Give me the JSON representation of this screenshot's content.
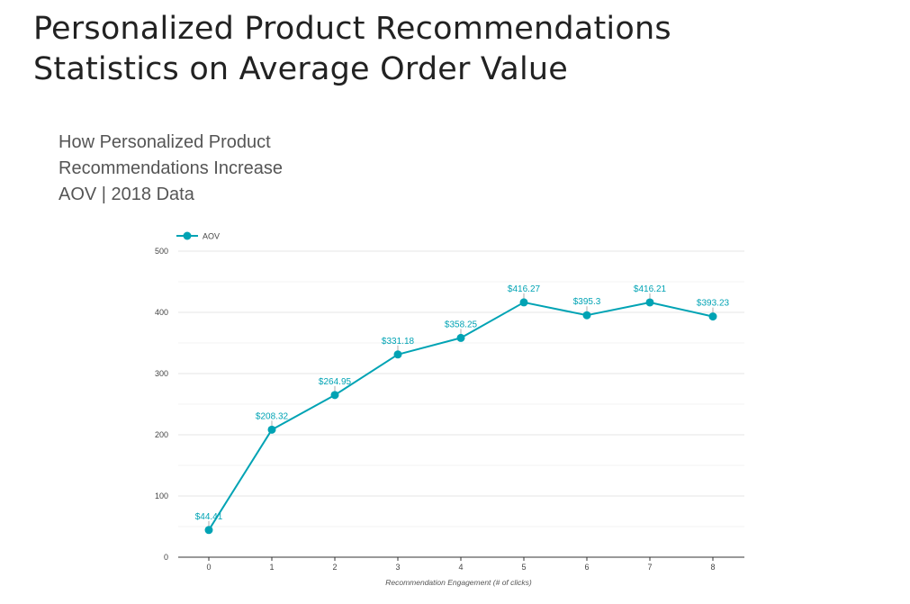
{
  "heading": {
    "line1": "Personalized Product Recommendations",
    "line2": "Statistics on Average Order Value"
  },
  "chart_data": {
    "type": "line",
    "title": "How Personalized Product Recommendations Increase AOV | 2018 Data",
    "title_lines": [
      "How Personalized Product",
      "Recommendations Increase",
      "AOV | 2018 Data"
    ],
    "xlabel": "Recommendation Engagement (# of clicks)",
    "ylabel": "",
    "categories": [
      "0",
      "1",
      "2",
      "3",
      "4",
      "5",
      "6",
      "7",
      "8"
    ],
    "ylim": [
      0,
      500
    ],
    "yticks": [
      0,
      100,
      200,
      300,
      400,
      500
    ],
    "grid": true,
    "legend_position": "top-left",
    "series": [
      {
        "name": "AOV",
        "color": "#00a3b4",
        "values": [
          44.41,
          208.32,
          264.95,
          331.18,
          358.25,
          416.27,
          395.3,
          416.21,
          393.23
        ],
        "labels": [
          "$44.41",
          "$208.32",
          "$264.95",
          "$331.18",
          "$358.25",
          "$416.27",
          "$395.3",
          "$416.21",
          "$393.23"
        ]
      }
    ]
  }
}
